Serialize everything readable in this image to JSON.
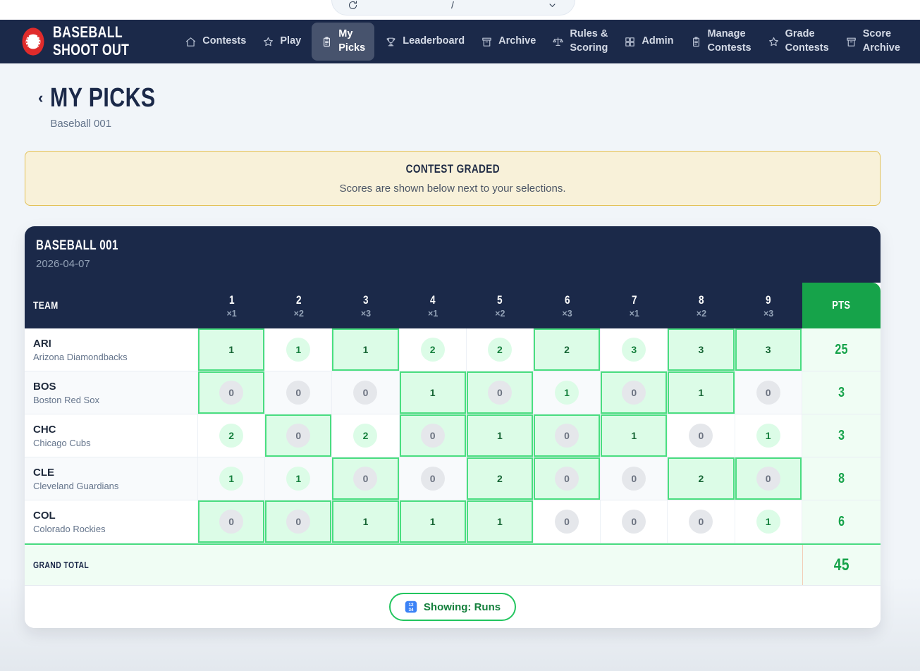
{
  "top_bar": {
    "game_selector": {
      "separator": "/"
    }
  },
  "navbar": {
    "brand": {
      "line1": "BASEBALL",
      "line2": "SHOOT OUT"
    },
    "items": [
      {
        "label": "Contests",
        "icon": "home",
        "active": false
      },
      {
        "label": "Play",
        "icon": "star",
        "active": false
      },
      {
        "label": "My Picks",
        "icon": "clipboard",
        "active": true
      },
      {
        "label": "Leaderboard",
        "icon": "trophy",
        "active": false
      },
      {
        "label": "Archive",
        "icon": "archive",
        "active": false
      },
      {
        "label": "Rules & Scoring",
        "icon": "scale",
        "active": false
      },
      {
        "label": "Admin",
        "icon": "grid",
        "active": false
      },
      {
        "label": "Manage Contests",
        "icon": "clipboard",
        "active": false
      },
      {
        "label": "Grade Contests",
        "icon": "star",
        "active": false
      },
      {
        "label": "Score Archive",
        "icon": "archive",
        "active": false
      }
    ]
  },
  "page": {
    "title": "MY PICKS",
    "subtitle": "Baseball 001",
    "back_glyph": "‹"
  },
  "banner": {
    "title": "CONTEST GRADED",
    "message": "Scores are shown below next to your selections."
  },
  "card": {
    "header": {
      "title": "BASEBALL 001",
      "date": "2026-04-07"
    },
    "table": {
      "team_header": "TEAM",
      "pts_header": "PTS",
      "columns": [
        {
          "inning": "1",
          "multiplier": "×1"
        },
        {
          "inning": "2",
          "multiplier": "×2"
        },
        {
          "inning": "3",
          "multiplier": "×3"
        },
        {
          "inning": "4",
          "multiplier": "×1"
        },
        {
          "inning": "5",
          "multiplier": "×2"
        },
        {
          "inning": "6",
          "multiplier": "×3"
        },
        {
          "inning": "7",
          "multiplier": "×1"
        },
        {
          "inning": "8",
          "multiplier": "×2"
        },
        {
          "inning": "9",
          "multiplier": "×3"
        }
      ],
      "rows": [
        {
          "abbr": "ARI",
          "name": "Arizona Diamondbacks",
          "cells": [
            {
              "value": 1,
              "picked": true
            },
            {
              "value": 1,
              "picked": false
            },
            {
              "value": 1,
              "picked": true
            },
            {
              "value": 2,
              "picked": false
            },
            {
              "value": 2,
              "picked": false
            },
            {
              "value": 2,
              "picked": true
            },
            {
              "value": 3,
              "picked": false
            },
            {
              "value": 3,
              "picked": true
            },
            {
              "value": 3,
              "picked": true
            }
          ],
          "pts": "25"
        },
        {
          "abbr": "BOS",
          "name": "Boston Red Sox",
          "cells": [
            {
              "value": 0,
              "picked": true
            },
            {
              "value": 0,
              "picked": false
            },
            {
              "value": 0,
              "picked": false
            },
            {
              "value": 1,
              "picked": true
            },
            {
              "value": 0,
              "picked": true
            },
            {
              "value": 1,
              "picked": false
            },
            {
              "value": 0,
              "picked": true
            },
            {
              "value": 1,
              "picked": true
            },
            {
              "value": 0,
              "picked": false
            }
          ],
          "pts": "3"
        },
        {
          "abbr": "CHC",
          "name": "Chicago Cubs",
          "cells": [
            {
              "value": 2,
              "picked": false
            },
            {
              "value": 0,
              "picked": true
            },
            {
              "value": 2,
              "picked": false
            },
            {
              "value": 0,
              "picked": true
            },
            {
              "value": 1,
              "picked": true
            },
            {
              "value": 0,
              "picked": true
            },
            {
              "value": 1,
              "picked": true
            },
            {
              "value": 0,
              "picked": false
            },
            {
              "value": 1,
              "picked": false
            }
          ],
          "pts": "3"
        },
        {
          "abbr": "CLE",
          "name": "Cleveland Guardians",
          "cells": [
            {
              "value": 1,
              "picked": false
            },
            {
              "value": 1,
              "picked": false
            },
            {
              "value": 0,
              "picked": true
            },
            {
              "value": 0,
              "picked": false
            },
            {
              "value": 2,
              "picked": true
            },
            {
              "value": 0,
              "picked": true
            },
            {
              "value": 0,
              "picked": false
            },
            {
              "value": 2,
              "picked": true
            },
            {
              "value": 0,
              "picked": true
            }
          ],
          "pts": "8"
        },
        {
          "abbr": "COL",
          "name": "Colorado Rockies",
          "cells": [
            {
              "value": 0,
              "picked": true
            },
            {
              "value": 0,
              "picked": true
            },
            {
              "value": 1,
              "picked": true
            },
            {
              "value": 1,
              "picked": true
            },
            {
              "value": 1,
              "picked": true
            },
            {
              "value": 0,
              "picked": false
            },
            {
              "value": 0,
              "picked": false
            },
            {
              "value": 0,
              "picked": false
            },
            {
              "value": 1,
              "picked": false
            }
          ],
          "pts": "6"
        }
      ],
      "grand_total": {
        "label": "GRAND TOTAL",
        "pts": "45"
      }
    },
    "footer": {
      "showing_label": "Showing: Runs"
    }
  },
  "colors": {
    "navy": "#1B2949",
    "green_header": "#16A34A",
    "pick_bg": "#DCFCE7",
    "pick_border": "#4ADE80",
    "pts_bg": "#F0FDF4",
    "banner_bg": "#F8F1D9",
    "banner_border": "#E3C157",
    "logo_red": "#E02B2B",
    "numbers_icon_blue": "#3B82F6"
  }
}
